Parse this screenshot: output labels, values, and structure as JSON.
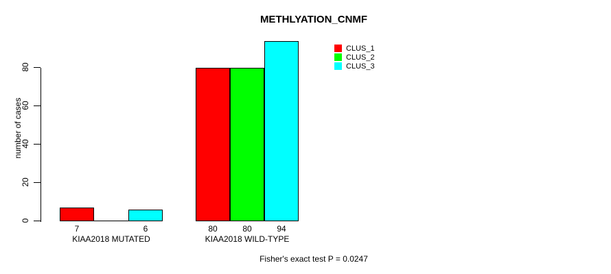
{
  "chart_data": {
    "type": "bar",
    "title": "METHLYATION_CNMF",
    "ylabel": "number of cases",
    "xlabel": "",
    "categories": [
      "KIAA2018 MUTATED",
      "KIAA2018 WILD-TYPE"
    ],
    "series": [
      {
        "name": "CLUS_1",
        "color": "#ff0000",
        "values": [
          7,
          80
        ],
        "bar_labels": [
          "7",
          "80"
        ]
      },
      {
        "name": "CLUS_2",
        "color": "#00ff00",
        "values": [
          0,
          80
        ],
        "bar_labels": [
          "",
          "80"
        ]
      },
      {
        "name": "CLUS_3",
        "color": "#00ffff",
        "values": [
          6,
          94
        ],
        "bar_labels": [
          "6",
          "94"
        ]
      }
    ],
    "yticks": [
      0,
      20,
      40,
      60,
      80
    ],
    "ylim": [
      0,
      94
    ],
    "grid": false,
    "legend_position": "top-right",
    "annotation": "Fisher's exact test P = 0.0247"
  }
}
